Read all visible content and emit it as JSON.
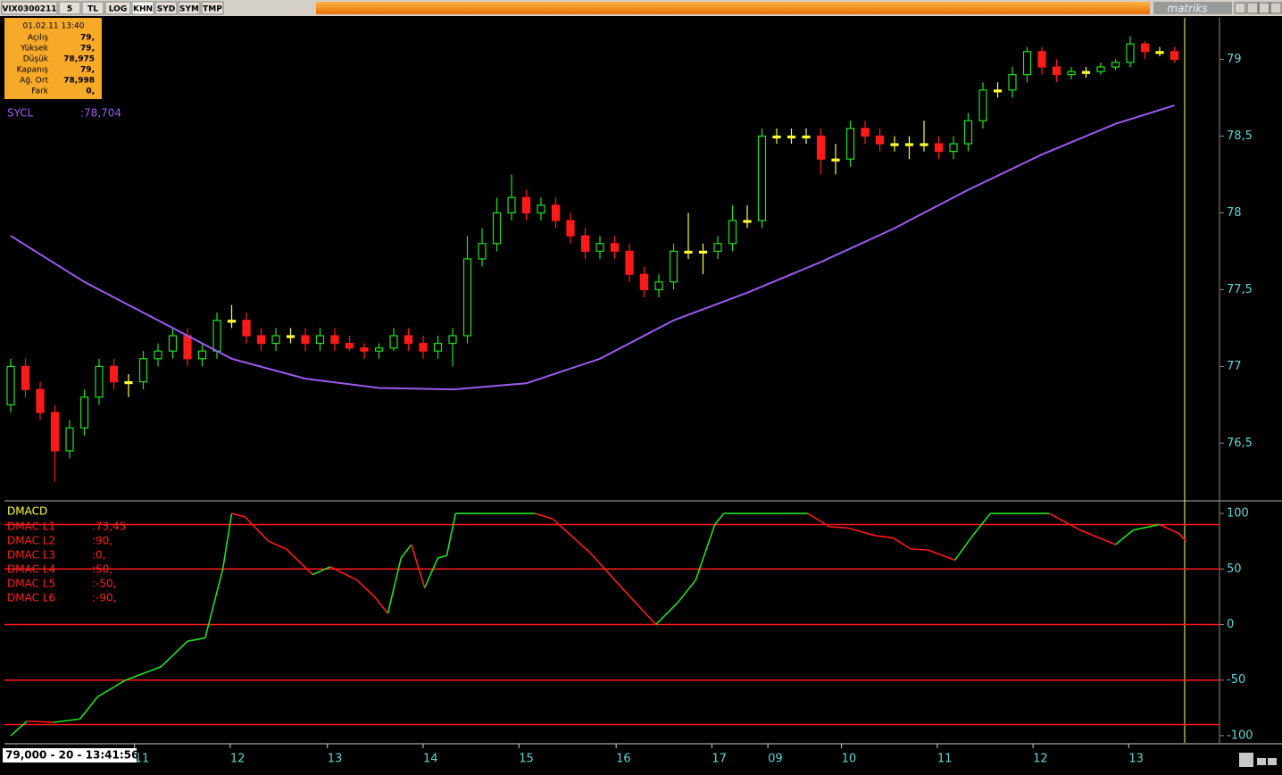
{
  "toolbar": {
    "buttons": [
      "VIX0300211",
      "5",
      "TL",
      "LOG",
      "KHN",
      "SYD",
      "SYM",
      "TMP"
    ],
    "brand": "matriks"
  },
  "info_box": {
    "date": "01.02.11 13:40",
    "rows": [
      [
        "Açılış",
        "79,"
      ],
      [
        "Yüksek",
        "79,"
      ],
      [
        "Düşük",
        "78,975"
      ],
      [
        "Kapanış",
        "79,"
      ],
      [
        "Ağ. Ort",
        "78,998"
      ],
      [
        "Fark",
        "0,"
      ]
    ]
  },
  "status": "79,000 - 20 - 13:41:56",
  "chart_data": [
    {
      "type": "candlestick",
      "up_color": "#22e022",
      "down_color": "#ff1a1a",
      "flat_color": "#ffff33",
      "ylim": [
        76.13,
        79.27
      ],
      "yticks": [
        {
          "value": 76.5,
          "label": "76,5"
        },
        77,
        {
          "value": 77.5,
          "label": "77,5"
        },
        78,
        {
          "value": 78.5,
          "label": "78,5"
        },
        79
      ],
      "open": [
        76.75,
        77.0,
        76.85,
        76.7,
        76.45,
        76.6,
        76.8,
        77.0,
        76.9,
        76.9,
        77.05,
        77.1,
        77.2,
        77.05,
        77.1,
        77.3,
        77.3,
        77.2,
        77.15,
        77.2,
        77.2,
        77.15,
        77.2,
        77.15,
        77.12,
        77.1,
        77.12,
        77.2,
        77.15,
        77.1,
        77.15,
        77.2,
        77.7,
        77.8,
        78.0,
        78.1,
        78.0,
        78.05,
        77.95,
        77.85,
        77.75,
        77.8,
        77.75,
        77.6,
        77.5,
        77.55,
        77.75,
        77.75,
        77.75,
        77.8,
        77.95,
        77.95,
        78.5,
        78.5,
        78.5,
        78.5,
        78.35,
        78.35,
        78.55,
        78.5,
        78.45,
        78.45,
        78.45,
        78.45,
        78.4,
        78.45,
        78.6,
        78.8,
        78.8,
        78.9,
        79.05,
        78.95,
        78.9,
        78.92,
        78.92,
        78.95,
        78.98,
        79.1,
        79.05,
        79.05
      ],
      "high": [
        77.05,
        77.05,
        76.9,
        76.75,
        76.65,
        76.85,
        77.05,
        77.05,
        76.95,
        77.1,
        77.15,
        77.25,
        77.25,
        77.15,
        77.35,
        77.4,
        77.35,
        77.25,
        77.25,
        77.25,
        77.25,
        77.25,
        77.25,
        77.2,
        77.15,
        77.15,
        77.25,
        77.25,
        77.2,
        77.2,
        77.25,
        77.85,
        77.9,
        78.1,
        78.25,
        78.15,
        78.1,
        78.1,
        78.0,
        77.9,
        77.85,
        77.85,
        77.8,
        77.65,
        77.6,
        77.8,
        78.0,
        77.8,
        77.85,
        78.05,
        78.05,
        78.55,
        78.55,
        78.55,
        78.55,
        78.55,
        78.45,
        78.6,
        78.6,
        78.55,
        78.5,
        78.5,
        78.6,
        78.5,
        78.5,
        78.65,
        78.85,
        78.85,
        78.95,
        79.08,
        79.08,
        79.0,
        78.95,
        78.95,
        78.98,
        79.0,
        79.15,
        79.12,
        79.08,
        79.08
      ],
      "low": [
        76.7,
        76.8,
        76.65,
        76.25,
        76.4,
        76.55,
        76.75,
        76.85,
        76.8,
        76.85,
        77.0,
        77.05,
        77.0,
        77.0,
        77.05,
        77.25,
        77.15,
        77.1,
        77.1,
        77.15,
        77.1,
        77.1,
        77.1,
        77.1,
        77.05,
        77.05,
        77.1,
        77.1,
        77.05,
        77.05,
        77.0,
        77.15,
        77.65,
        77.75,
        77.95,
        77.95,
        77.95,
        77.9,
        77.8,
        77.7,
        77.7,
        77.7,
        77.55,
        77.45,
        77.45,
        77.5,
        77.7,
        77.6,
        77.7,
        77.75,
        77.9,
        77.9,
        78.45,
        78.45,
        78.45,
        78.25,
        78.25,
        78.3,
        78.45,
        78.4,
        78.4,
        78.35,
        78.4,
        78.35,
        78.35,
        78.4,
        78.55,
        78.75,
        78.75,
        78.85,
        78.9,
        78.85,
        78.87,
        78.88,
        78.9,
        78.93,
        78.95,
        79.0,
        79.02,
        78.98
      ],
      "close": [
        77.0,
        76.85,
        76.7,
        76.45,
        76.6,
        76.8,
        77.0,
        76.9,
        76.9,
        77.05,
        77.1,
        77.2,
        77.05,
        77.1,
        77.3,
        77.3,
        77.2,
        77.15,
        77.2,
        77.2,
        77.15,
        77.2,
        77.15,
        77.12,
        77.1,
        77.12,
        77.2,
        77.15,
        77.1,
        77.15,
        77.2,
        77.7,
        77.8,
        78.0,
        78.1,
        78.0,
        78.05,
        77.95,
        77.85,
        77.75,
        77.8,
        77.75,
        77.6,
        77.5,
        77.55,
        77.75,
        77.75,
        77.75,
        77.8,
        77.95,
        77.95,
        78.5,
        78.5,
        78.5,
        78.5,
        78.35,
        78.35,
        78.55,
        78.5,
        78.45,
        78.45,
        78.45,
        78.45,
        78.4,
        78.45,
        78.6,
        78.8,
        78.8,
        78.9,
        79.05,
        78.95,
        78.9,
        78.92,
        78.92,
        78.95,
        78.98,
        79.1,
        79.05,
        79.05,
        79.0
      ],
      "lines": [
        {
          "name": "SYCL",
          "value_label": ":78,704",
          "color": "#9a5cf0",
          "x": [
            0,
            5,
            10,
            15,
            20,
            25,
            30,
            35,
            40,
            45,
            50,
            55,
            60,
            65,
            70,
            75,
            79
          ],
          "values": [
            77.85,
            77.55,
            77.3,
            77.05,
            76.92,
            76.86,
            76.85,
            76.89,
            77.05,
            77.3,
            77.48,
            77.68,
            77.9,
            78.15,
            78.38,
            78.58,
            78.7
          ]
        }
      ]
    },
    {
      "type": "line",
      "title": "DMACD",
      "up_color": "#22e022",
      "down_color": "#ff1a1a",
      "hline_color": "#ff1a1a",
      "ylim": [
        -106.5,
        109.7
      ],
      "yticks": [
        100,
        50,
        0,
        -50,
        -100
      ],
      "hlines": [
        90,
        50,
        0,
        -50,
        -90
      ],
      "legend": [
        [
          "DMAC L1",
          ":73,45"
        ],
        [
          "DMAC L2",
          ":90,"
        ],
        [
          "DMAC L3",
          ":0,"
        ],
        [
          "DMAC L4",
          ":50,"
        ],
        [
          "DMAC L5",
          ":-50,"
        ],
        [
          "DMAC L6",
          ":-90,"
        ]
      ],
      "x": [
        0,
        1.1,
        2.9,
        4.7,
        5.9,
        7.8,
        10.2,
        12,
        13.2,
        14.4,
        15,
        15.9,
        17.5,
        18.7,
        20.5,
        21.7,
        23.5,
        24.7,
        25.6,
        26.5,
        27.2,
        28.1,
        29,
        29.6,
        30.2,
        35.6,
        36.8,
        39.3,
        41.7,
        43.8,
        45.3,
        46.5,
        47.8,
        48.4,
        54.1,
        55.6,
        56.8,
        58.7,
        59.9,
        61.1,
        62.3,
        64.1,
        65.3,
        66.5,
        70.5,
        72.6,
        75,
        76.2,
        78,
        79.3,
        79.8
      ],
      "values": [
        -100,
        -87,
        -88,
        -85,
        -65,
        -50,
        -38,
        -15,
        -12,
        50,
        100,
        97,
        75,
        68,
        45,
        52,
        40,
        25,
        10,
        60,
        72,
        33,
        60,
        62,
        100,
        100,
        95,
        65,
        30,
        0,
        20,
        40,
        90,
        100,
        100,
        88,
        87,
        80,
        78,
        68,
        67,
        58,
        80,
        100,
        100,
        85,
        72,
        85,
        90,
        82,
        75
      ],
      "xticks": [
        {
          "value": 8.4,
          "label": "11"
        },
        {
          "value": 14.9,
          "label": "12"
        },
        {
          "value": 21.5,
          "label": "13"
        },
        {
          "value": 28,
          "label": "14"
        },
        {
          "value": 34.5,
          "label": "15"
        },
        {
          "value": 41.1,
          "label": "16"
        },
        {
          "value": 47.6,
          "label": "17"
        },
        {
          "value": 51.4,
          "label": "09"
        },
        {
          "value": 56.4,
          "label": "10"
        },
        {
          "value": 62.9,
          "label": "11"
        },
        {
          "value": 69.4,
          "label": "12"
        },
        {
          "value": 75.9,
          "label": "13"
        }
      ]
    }
  ]
}
